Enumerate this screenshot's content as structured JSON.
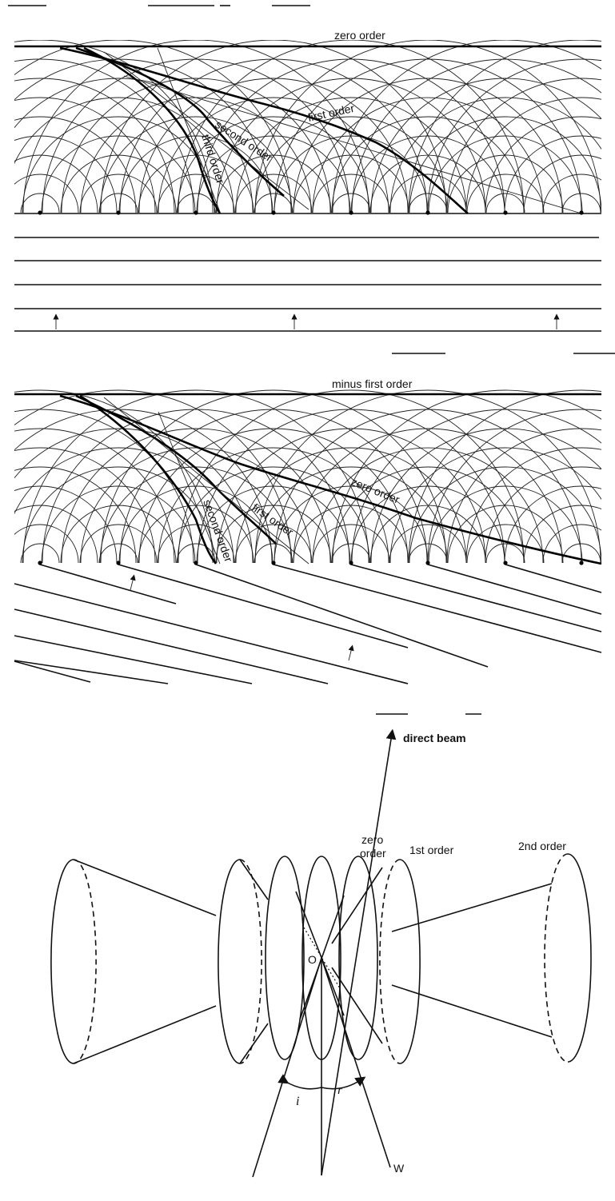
{
  "panel1": {
    "labels": {
      "zero_order": "zero order",
      "first_order": "first order",
      "second_order": "second order",
      "third_order": "third order"
    }
  },
  "panel2": {
    "labels": {
      "minus_first_order": "minus first order",
      "zero_order": "zero order",
      "first_order": "first order",
      "second_order": "second order"
    }
  },
  "panel3": {
    "labels": {
      "direct_beam": "direct beam",
      "zero_order": "zero",
      "zero_order_line2": "order",
      "first_order": "1st order",
      "second_order": "2nd order",
      "origin": "O",
      "incidence_angle": "i",
      "reflection_angle": "r",
      "wave_label": "W"
    }
  }
}
